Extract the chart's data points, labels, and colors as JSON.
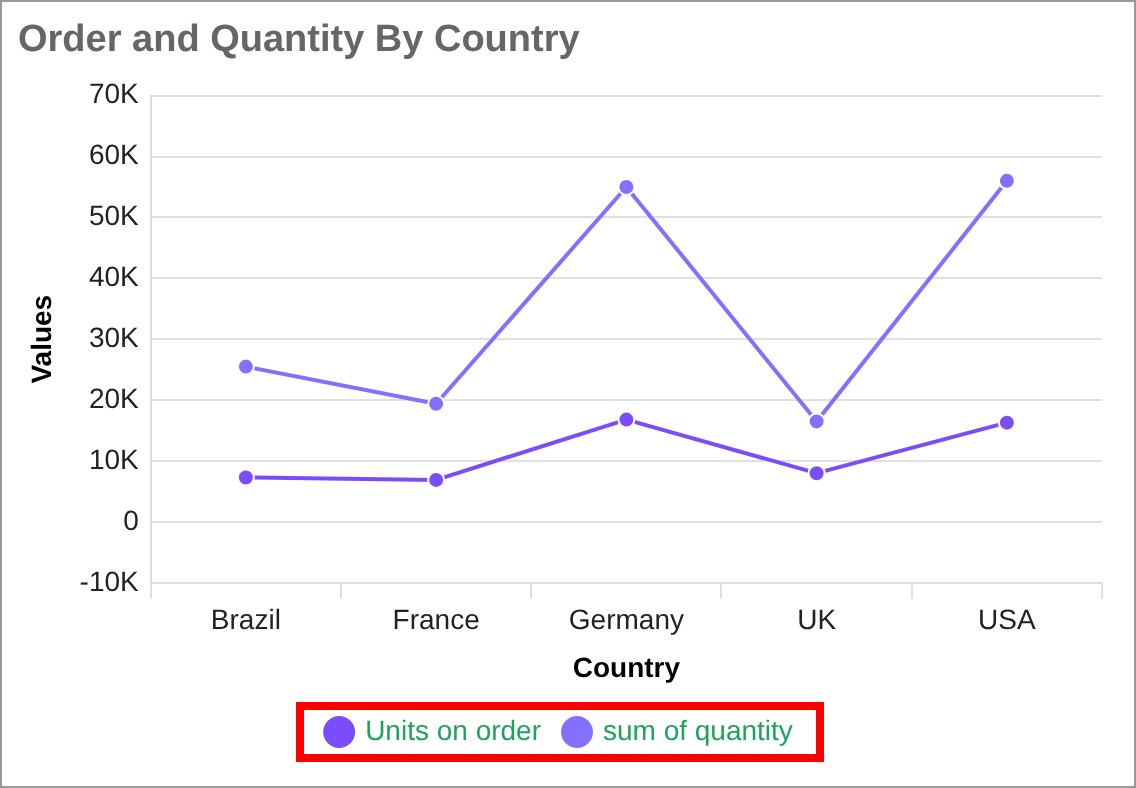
{
  "chart_data": {
    "type": "line",
    "title": "Order and Quantity By Country",
    "xlabel": "Country",
    "ylabel": "Values",
    "categories": [
      "Brazil",
      "France",
      "Germany",
      "UK",
      "USA"
    ],
    "series": [
      {
        "name": "Units on order",
        "color": "#7b4dfa",
        "values": [
          7300,
          6900,
          16800,
          8000,
          16300
        ]
      },
      {
        "name": "sum of quantity",
        "color": "#8470ff",
        "values": [
          25500,
          19400,
          55000,
          16500,
          56000
        ]
      }
    ],
    "ylim": [
      -10000,
      70000
    ],
    "yticks": [
      {
        "value": -10000,
        "label": "-10K"
      },
      0,
      {
        "value": 10000,
        "label": "10K"
      },
      {
        "value": 20000,
        "label": "20K"
      },
      {
        "value": 30000,
        "label": "30K"
      },
      {
        "value": 40000,
        "label": "40K"
      },
      {
        "value": 50000,
        "label": "50K"
      },
      {
        "value": 60000,
        "label": "60K"
      },
      {
        "value": 70000,
        "label": "70K"
      }
    ],
    "grid": "y",
    "legend": "bottom",
    "marker": "circle",
    "line_style": "solid"
  }
}
